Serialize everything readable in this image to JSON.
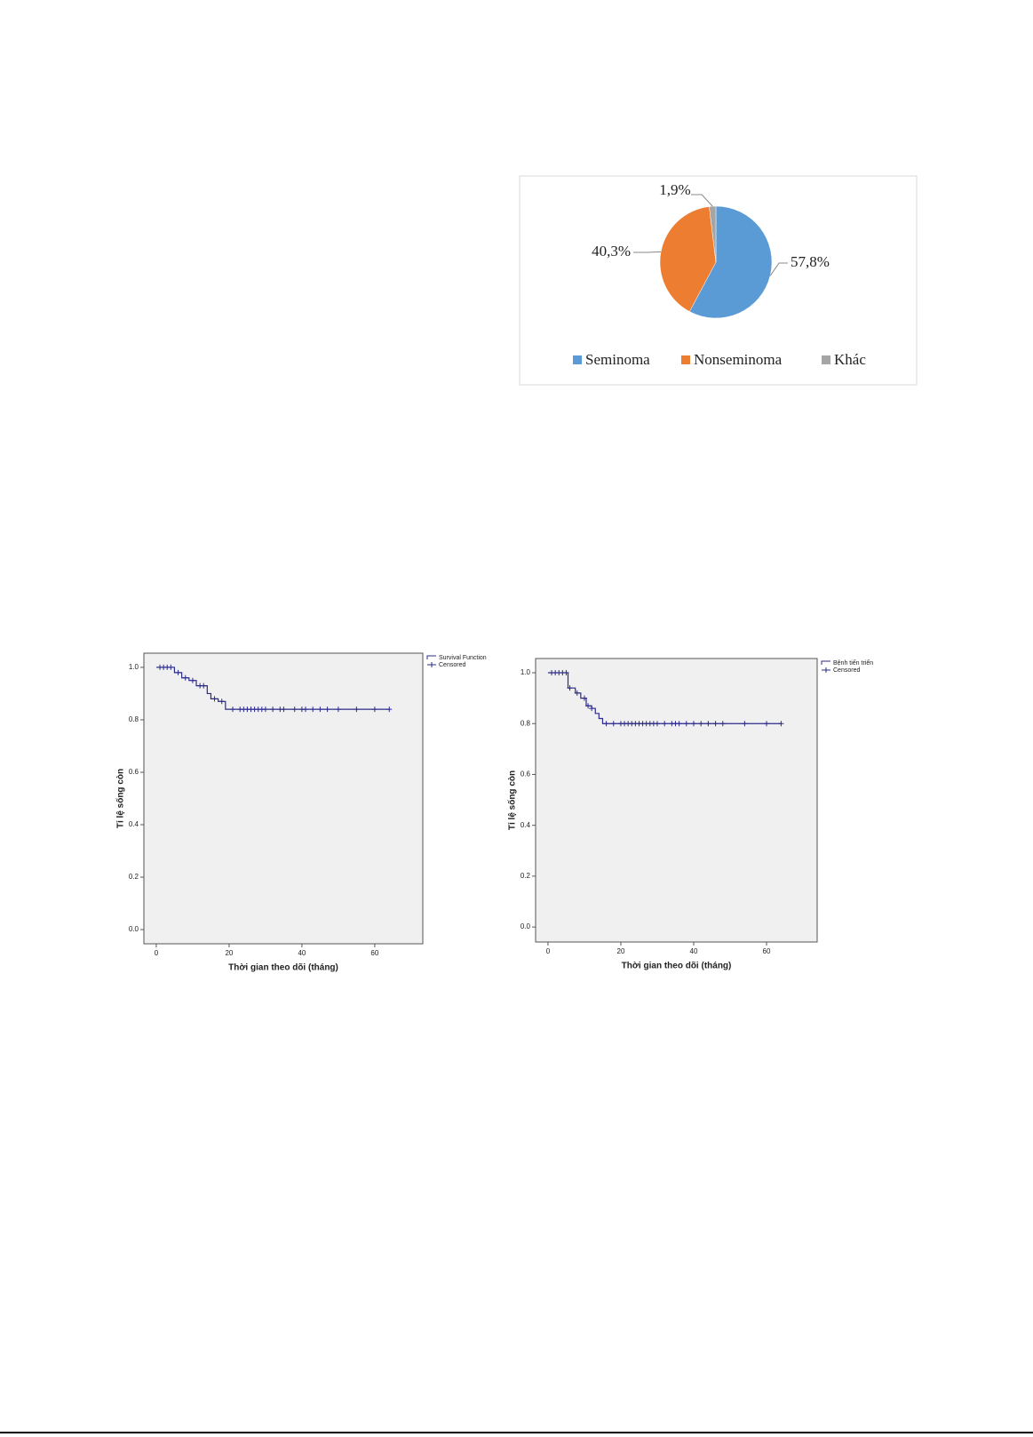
{
  "chart_data": [
    {
      "type": "pie",
      "categories": [
        "Seminoma",
        "Nonseminoma",
        "Khác"
      ],
      "values": [
        57.8,
        40.3,
        1.9
      ],
      "value_labels": [
        "57,8%",
        "40,3%",
        "1,9%"
      ],
      "colors": [
        "#5b9bd5",
        "#ed7d31",
        "#a5a5a5"
      ],
      "legend": "bottom"
    },
    {
      "type": "step",
      "ylabel": "Tỉ lệ sống còn",
      "xlabel": "Thời gian theo dõi (tháng)",
      "xlim": [
        -3.4,
        73.2
      ],
      "ylim": [
        -0.054,
        1.054
      ],
      "xticks": [
        0,
        20,
        40,
        60
      ],
      "yticks": [
        {
          "value": 0,
          "label": "0.0"
        },
        {
          "value": 0.2,
          "label": "0.2"
        },
        {
          "value": 0.4,
          "label": "0.4"
        },
        {
          "value": 0.6,
          "label": "0.6"
        },
        {
          "value": 0.8,
          "label": "0.8"
        },
        {
          "value": 1,
          "label": "1.0"
        }
      ],
      "legend": "outside right",
      "series": [
        {
          "name": "Survival Function",
          "color": "#2b2b8a",
          "style": "step",
          "x": [
            0,
            5,
            7,
            9,
            11,
            14,
            15,
            17,
            19,
            64
          ],
          "values": [
            1,
            0.98,
            0.96,
            0.95,
            0.93,
            0.9,
            0.88,
            0.87,
            0.84,
            0.84
          ]
        },
        {
          "name": "Censored",
          "color": "#2b2b8a",
          "style": "marker",
          "x": [
            1,
            2,
            3,
            4,
            6,
            8,
            10,
            12,
            13,
            16,
            18,
            21,
            23,
            24,
            25,
            26,
            27,
            28,
            29,
            30,
            32,
            34,
            35,
            38,
            40,
            41,
            43,
            45,
            47,
            50,
            55,
            60,
            64
          ],
          "values": [
            1,
            1,
            1,
            1,
            0.98,
            0.96,
            0.95,
            0.93,
            0.93,
            0.88,
            0.87,
            0.84,
            0.84,
            0.84,
            0.84,
            0.84,
            0.84,
            0.84,
            0.84,
            0.84,
            0.84,
            0.84,
            0.84,
            0.84,
            0.84,
            0.84,
            0.84,
            0.84,
            0.84,
            0.84,
            0.84,
            0.84,
            0.84
          ]
        }
      ]
    },
    {
      "type": "step",
      "ylabel": "Tỉ lệ sống còn",
      "xlabel": "Thời gian theo dõi (tháng)",
      "xlim": [
        -3.4,
        73.9
      ],
      "ylim": [
        -0.059,
        1.056
      ],
      "xticks": [
        0,
        20,
        40,
        60
      ],
      "yticks": [
        {
          "value": 0,
          "label": "0.0"
        },
        {
          "value": 0.2,
          "label": "0.2"
        },
        {
          "value": 0.4,
          "label": "0.4"
        },
        {
          "value": 0.6,
          "label": "0.6"
        },
        {
          "value": 0.8,
          "label": "0.8"
        },
        {
          "value": 1,
          "label": "1.0"
        }
      ],
      "legend": "outside right",
      "series": [
        {
          "name": "Bệnh tiến triển",
          "color": "#2b2b8a",
          "style": "step",
          "x": [
            0,
            5.5,
            7.5,
            9,
            10.5,
            12,
            13,
            14,
            15,
            64
          ],
          "values": [
            1,
            0.94,
            0.92,
            0.9,
            0.87,
            0.86,
            0.84,
            0.82,
            0.8,
            0.8
          ]
        },
        {
          "name": "Censored",
          "color": "#2b2b8a",
          "style": "marker",
          "x": [
            1,
            2,
            3,
            4,
            5,
            6,
            8,
            10,
            11,
            12,
            16,
            18,
            20,
            21,
            22,
            23,
            24,
            25,
            26,
            27,
            28,
            29,
            30,
            32,
            34,
            35,
            36,
            38,
            40,
            42,
            44,
            46,
            48,
            54,
            60,
            64
          ],
          "values": [
            1,
            1,
            1,
            1,
            1,
            0.94,
            0.92,
            0.9,
            0.87,
            0.86,
            0.8,
            0.8,
            0.8,
            0.8,
            0.8,
            0.8,
            0.8,
            0.8,
            0.8,
            0.8,
            0.8,
            0.8,
            0.8,
            0.8,
            0.8,
            0.8,
            0.8,
            0.8,
            0.8,
            0.8,
            0.8,
            0.8,
            0.8,
            0.8,
            0.8,
            0.8
          ]
        }
      ]
    }
  ]
}
